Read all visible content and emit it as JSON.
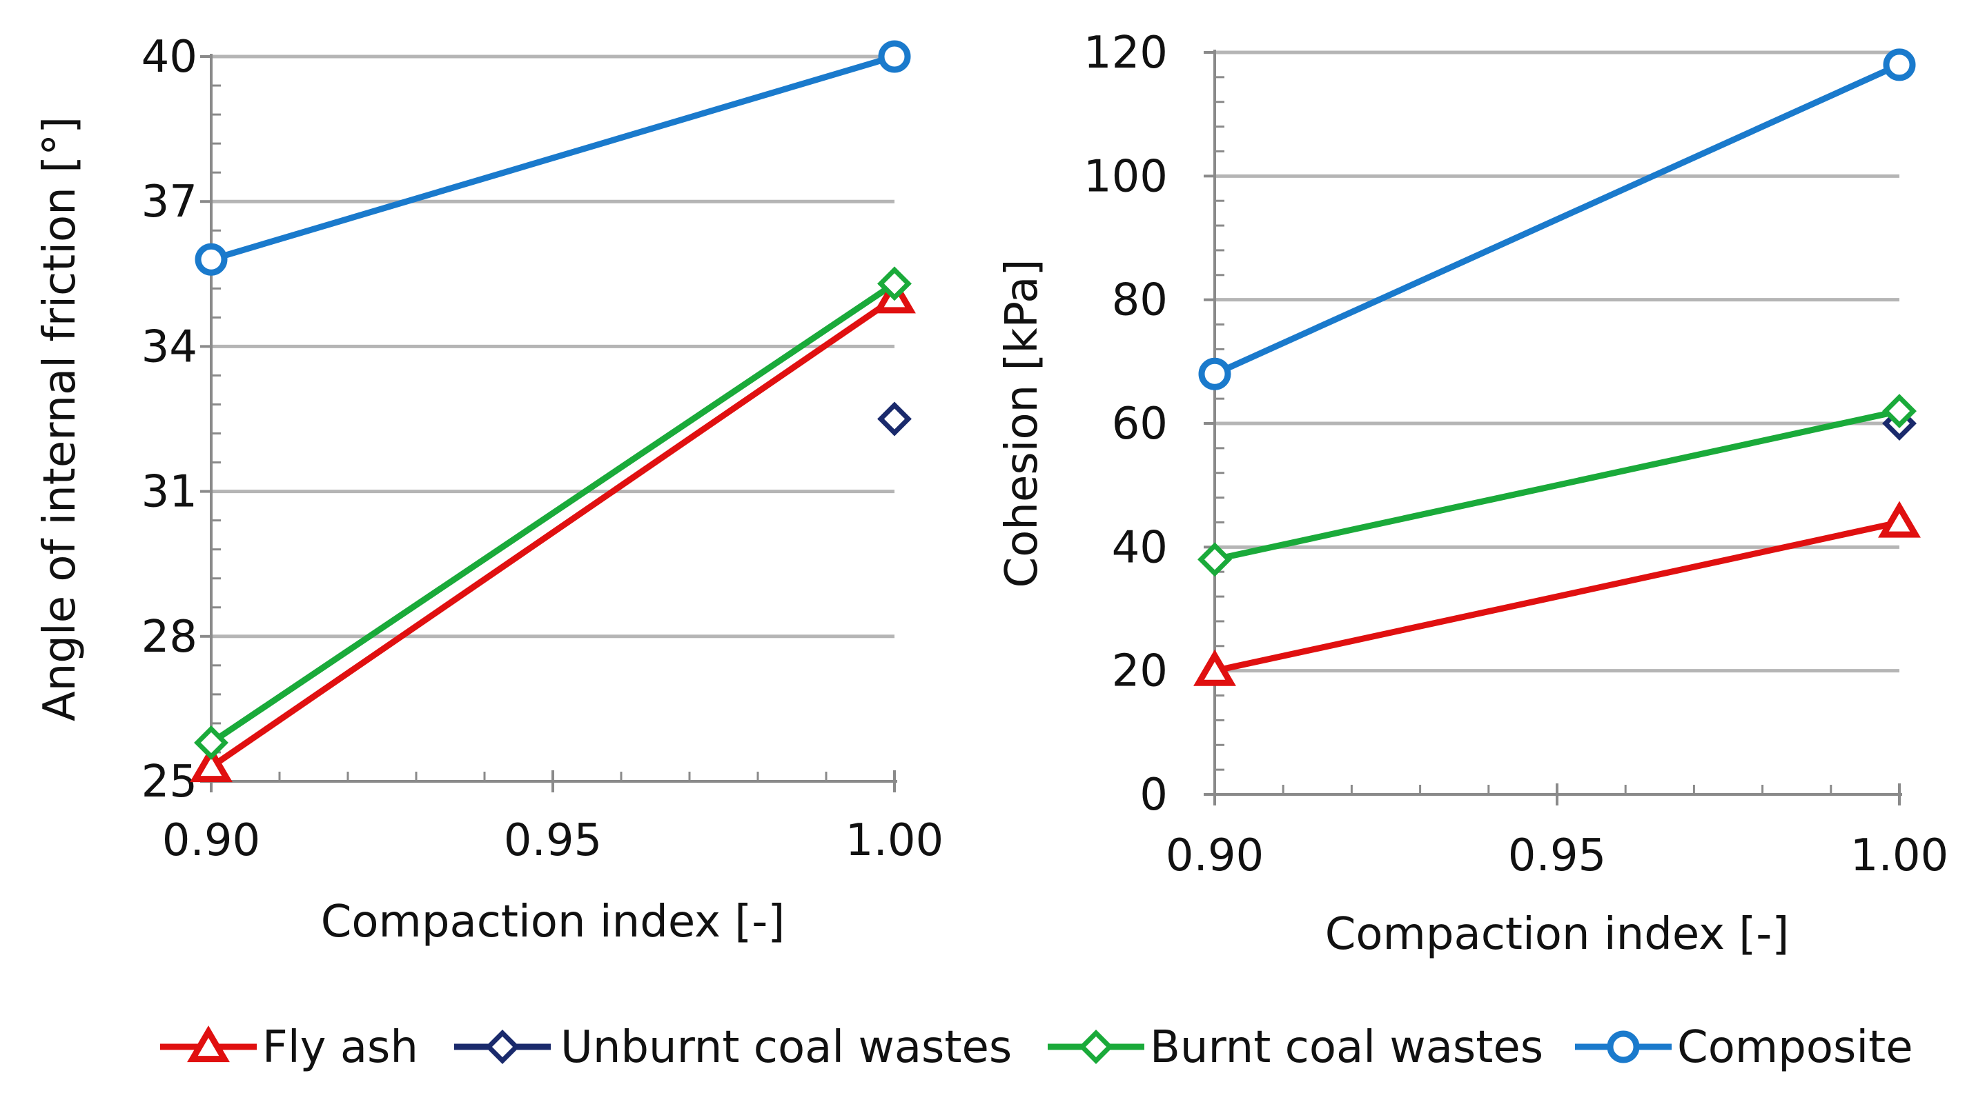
{
  "chart_data": [
    {
      "type": "line",
      "title": "",
      "xlabel": "Compaction index [-]",
      "ylabel": "Angle of internal friction  [°]",
      "xlim": [
        0.9,
        1.0
      ],
      "ylim": [
        25,
        40
      ],
      "xticks": [
        0.9,
        0.95,
        1.0
      ],
      "xtick_labels": [
        "0.90",
        "0.95",
        "1.00"
      ],
      "yticks": [
        25,
        28,
        31,
        34,
        37,
        40
      ],
      "ytick_labels": [
        "25",
        "28",
        "31",
        "34",
        "37",
        "40"
      ],
      "grid": true,
      "series": [
        {
          "name": "Fly ash",
          "color": "#e01010",
          "marker": "triangle",
          "line": true,
          "x": [
            0.9,
            1.0
          ],
          "values": [
            25.3,
            35.0
          ]
        },
        {
          "name": "Unburnt coal wastes",
          "color": "#1a2a6c",
          "marker": "diamond",
          "line": false,
          "x": [
            1.0
          ],
          "values": [
            32.5
          ]
        },
        {
          "name": "Burnt coal wastes",
          "color": "#1aaa3a",
          "marker": "diamond",
          "line": true,
          "x": [
            0.9,
            1.0
          ],
          "values": [
            25.8,
            35.3
          ]
        },
        {
          "name": "Composite",
          "color": "#1a7acc",
          "marker": "circle",
          "line": true,
          "x": [
            0.9,
            1.0
          ],
          "values": [
            35.8,
            40.0
          ]
        }
      ]
    },
    {
      "type": "line",
      "title": "",
      "xlabel": "Compaction index [-]",
      "ylabel": "Cohesion [kPa]",
      "xlim": [
        0.9,
        1.0
      ],
      "ylim": [
        0,
        120
      ],
      "xticks": [
        0.9,
        0.95,
        1.0
      ],
      "xtick_labels": [
        "0.90",
        "0.95",
        "1.00"
      ],
      "yticks": [
        0,
        20,
        40,
        60,
        80,
        100,
        120
      ],
      "ytick_labels": [
        "0",
        "20",
        "40",
        "60",
        "80",
        "100",
        "120"
      ],
      "grid": true,
      "series": [
        {
          "name": "Fly ash",
          "color": "#e01010",
          "marker": "triangle",
          "line": true,
          "x": [
            0.9,
            1.0
          ],
          "values": [
            20,
            44
          ]
        },
        {
          "name": "Unburnt coal wastes",
          "color": "#1a2a6c",
          "marker": "diamond",
          "line": false,
          "x": [
            1.0
          ],
          "values": [
            60
          ]
        },
        {
          "name": "Burnt coal wastes",
          "color": "#1aaa3a",
          "marker": "diamond",
          "line": true,
          "x": [
            0.9,
            1.0
          ],
          "values": [
            38,
            62
          ]
        },
        {
          "name": "Composite",
          "color": "#1a7acc",
          "marker": "circle",
          "line": true,
          "x": [
            0.9,
            1.0
          ],
          "values": [
            68,
            118
          ]
        }
      ]
    }
  ],
  "legend": {
    "placement": "bottom",
    "entries": [
      {
        "label": "Fly ash",
        "color": "#e01010",
        "marker": "triangle"
      },
      {
        "label": "Unburnt coal wastes",
        "color": "#1a2a6c",
        "marker": "diamond"
      },
      {
        "label": "Burnt coal wastes",
        "color": "#1aaa3a",
        "marker": "diamond"
      },
      {
        "label": "Composite",
        "color": "#1a7acc",
        "marker": "circle"
      }
    ]
  }
}
